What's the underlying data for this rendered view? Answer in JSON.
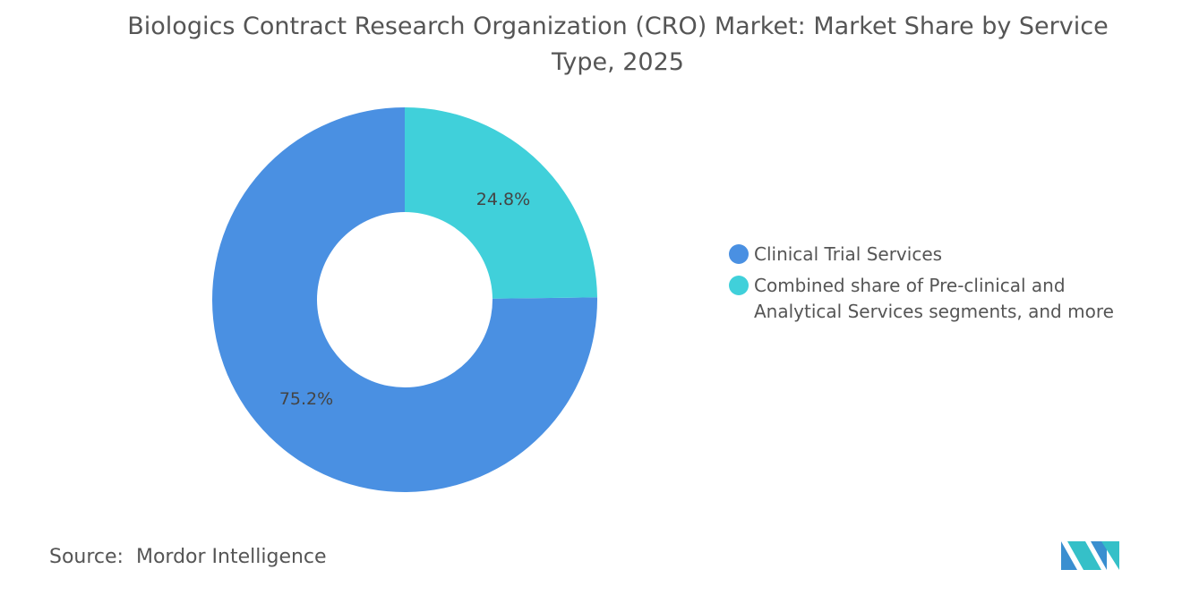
{
  "chart_data": {
    "type": "donut",
    "title": "Biologics Contract Research Organization (CRO) Market: Market Share by Service Type, 2025",
    "categories": [
      "Clinical Trial Services",
      "Combined share of Pre-clinical and Analytical Services segments, and more"
    ],
    "values": [
      75.2,
      24.8
    ],
    "value_labels": [
      "75.2%",
      "24.8%"
    ],
    "colors": [
      "#4a90e2",
      "#40d0da"
    ],
    "legend": "right"
  },
  "source_label": "Source:",
  "source": "Mordor Intelligence"
}
